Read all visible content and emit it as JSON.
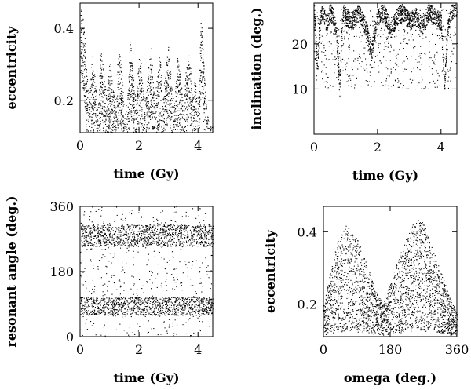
{
  "chart_data": [
    {
      "id": "ecc-time",
      "type": "scatter",
      "title": "",
      "xlabel": "time (Gy)",
      "ylabel": "eccentricity",
      "xlim": [
        0,
        4.5
      ],
      "ylim": [
        0.11,
        0.47
      ],
      "xticks": [
        0,
        2,
        4
      ],
      "xtick_labels": [
        "0",
        "2",
        "4"
      ],
      "yticks": [
        0.2,
        0.4
      ],
      "ytick_labels": [
        "0.2",
        "0.4"
      ],
      "grid": false,
      "legend": "none",
      "color": "#000000",
      "series": [
        {
          "x": [
            0.0,
            0.05,
            0.1,
            0.15,
            0.2,
            0.3,
            0.4,
            0.5,
            0.6,
            0.7,
            0.8,
            0.9,
            1.0,
            1.1,
            1.2,
            1.3,
            1.4,
            1.5,
            1.6,
            1.7,
            1.8,
            1.9,
            2.0,
            2.1,
            2.2,
            2.3,
            2.4,
            2.5,
            2.6,
            2.7,
            2.8,
            2.9,
            3.0,
            3.1,
            3.2,
            3.3,
            3.4,
            3.5,
            3.6,
            3.7,
            3.8,
            3.9,
            4.0,
            4.1,
            4.2,
            4.3,
            4.4,
            4.5
          ],
          "y": [
            0.44,
            0.46,
            0.42,
            0.38,
            0.3,
            0.2,
            0.34,
            0.26,
            0.18,
            0.36,
            0.28,
            0.22,
            0.32,
            0.24,
            0.2,
            0.36,
            0.3,
            0.16,
            0.22,
            0.38,
            0.26,
            0.2,
            0.34,
            0.28,
            0.18,
            0.3,
            0.36,
            0.22,
            0.26,
            0.34,
            0.2,
            0.3,
            0.36,
            0.24,
            0.2,
            0.32,
            0.28,
            0.18,
            0.3,
            0.36,
            0.22,
            0.26,
            0.2,
            0.44,
            0.3,
            0.16,
            0.14,
            0.13
          ]
        }
      ]
    },
    {
      "id": "inc-time",
      "type": "scatter",
      "title": "",
      "xlabel": "time (Gy)",
      "ylabel": "inclination (deg.)",
      "xlim": [
        0,
        4.5
      ],
      "ylim": [
        0,
        29
      ],
      "xticks": [
        0,
        2,
        4
      ],
      "xtick_labels": [
        "0",
        "2",
        "4"
      ],
      "yticks": [
        10,
        20
      ],
      "ytick_labels": [
        "10",
        "20"
      ],
      "grid": false,
      "legend": "none",
      "color": "#000000",
      "series": [
        {
          "x": [
            0.0,
            0.1,
            0.2,
            0.3,
            0.4,
            0.5,
            0.6,
            0.7,
            0.8,
            0.9,
            1.0,
            1.2,
            1.4,
            1.6,
            1.8,
            2.0,
            2.2,
            2.4,
            2.6,
            2.8,
            3.0,
            3.2,
            3.4,
            3.6,
            3.8,
            4.0,
            4.1,
            4.2,
            4.3,
            4.4,
            4.5
          ],
          "y": [
            27,
            14,
            26,
            27,
            24,
            27,
            26,
            22,
            10,
            27,
            26,
            25,
            27,
            24,
            18,
            26,
            27,
            23,
            26,
            27,
            25,
            26,
            24,
            27,
            26,
            25,
            10,
            23,
            27,
            28,
            28
          ]
        }
      ]
    },
    {
      "id": "res-time",
      "type": "scatter",
      "title": "",
      "xlabel": "time (Gy)",
      "ylabel": "resonant angle (deg.)",
      "xlim": [
        0,
        4.5
      ],
      "ylim": [
        0,
        360
      ],
      "xticks": [
        0,
        2,
        4
      ],
      "xtick_labels": [
        "0",
        "2",
        "4"
      ],
      "yticks": [
        0,
        180,
        360
      ],
      "ytick_labels": [
        "0",
        "180",
        "360"
      ],
      "grid": false,
      "legend": "none",
      "color": "#000000",
      "series": [
        {
          "x": [
            0.0,
            0.2,
            0.4,
            0.6,
            0.8,
            1.0,
            1.2,
            1.4,
            1.6,
            1.8,
            2.0,
            2.2,
            2.4,
            2.6,
            2.8,
            3.0,
            3.2,
            3.4,
            3.6,
            3.8,
            4.0,
            4.2,
            4.4
          ],
          "y": [
            60,
            280,
            90,
            270,
            100,
            290,
            80,
            260,
            180,
            95,
            285,
            75,
            275,
            100,
            290,
            85,
            270,
            90,
            280,
            100,
            270,
            80,
            260
          ]
        }
      ]
    },
    {
      "id": "ecc-omega",
      "type": "scatter",
      "title": "",
      "xlabel": "omega (deg.)",
      "ylabel": "eccentricity",
      "xlim": [
        0,
        360
      ],
      "ylim": [
        0.11,
        0.47
      ],
      "xticks": [
        0,
        180,
        360
      ],
      "xtick_labels": [
        "0",
        "180",
        "360"
      ],
      "yticks": [
        0.2,
        0.4
      ],
      "ytick_labels": [
        "0.2",
        "0.4"
      ],
      "grid": false,
      "legend": "none",
      "color": "#000000",
      "series": [
        {
          "x": [
            0,
            20,
            40,
            60,
            80,
            100,
            120,
            140,
            160,
            180,
            200,
            220,
            240,
            260,
            280,
            300,
            320,
            340,
            360
          ],
          "y": [
            0.2,
            0.3,
            0.38,
            0.42,
            0.4,
            0.36,
            0.3,
            0.24,
            0.2,
            0.26,
            0.32,
            0.38,
            0.42,
            0.44,
            0.4,
            0.34,
            0.28,
            0.22,
            0.18
          ]
        }
      ]
    }
  ]
}
